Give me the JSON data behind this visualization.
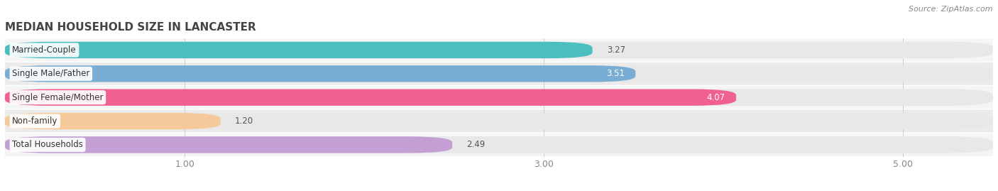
{
  "title": "MEDIAN HOUSEHOLD SIZE IN LANCASTER",
  "source": "Source: ZipAtlas.com",
  "categories": [
    "Married-Couple",
    "Single Male/Father",
    "Single Female/Mother",
    "Non-family",
    "Total Households"
  ],
  "values": [
    3.27,
    3.51,
    4.07,
    1.2,
    2.49
  ],
  "bar_colors": [
    "#4bbfbf",
    "#7aadd4",
    "#f06090",
    "#f5c99a",
    "#c49fd4"
  ],
  "value_labels": [
    "3.27",
    "3.51",
    "4.07",
    "1.20",
    "2.49"
  ],
  "value_inside": [
    false,
    true,
    true,
    false,
    false
  ],
  "value_white": [
    false,
    true,
    true,
    false,
    false
  ],
  "xlim_min": 0.0,
  "xlim_max": 5.5,
  "xticks": [
    1.0,
    3.0,
    5.0
  ],
  "xtick_labels": [
    "1.00",
    "3.00",
    "5.00"
  ],
  "bg_color": "#ffffff",
  "bar_bg_color": "#efefef",
  "row_bg_colors": [
    "#f7f7f7",
    "#f0f0f0"
  ],
  "title_fontsize": 11,
  "label_fontsize": 8.5,
  "value_fontsize": 8.5,
  "source_fontsize": 8
}
